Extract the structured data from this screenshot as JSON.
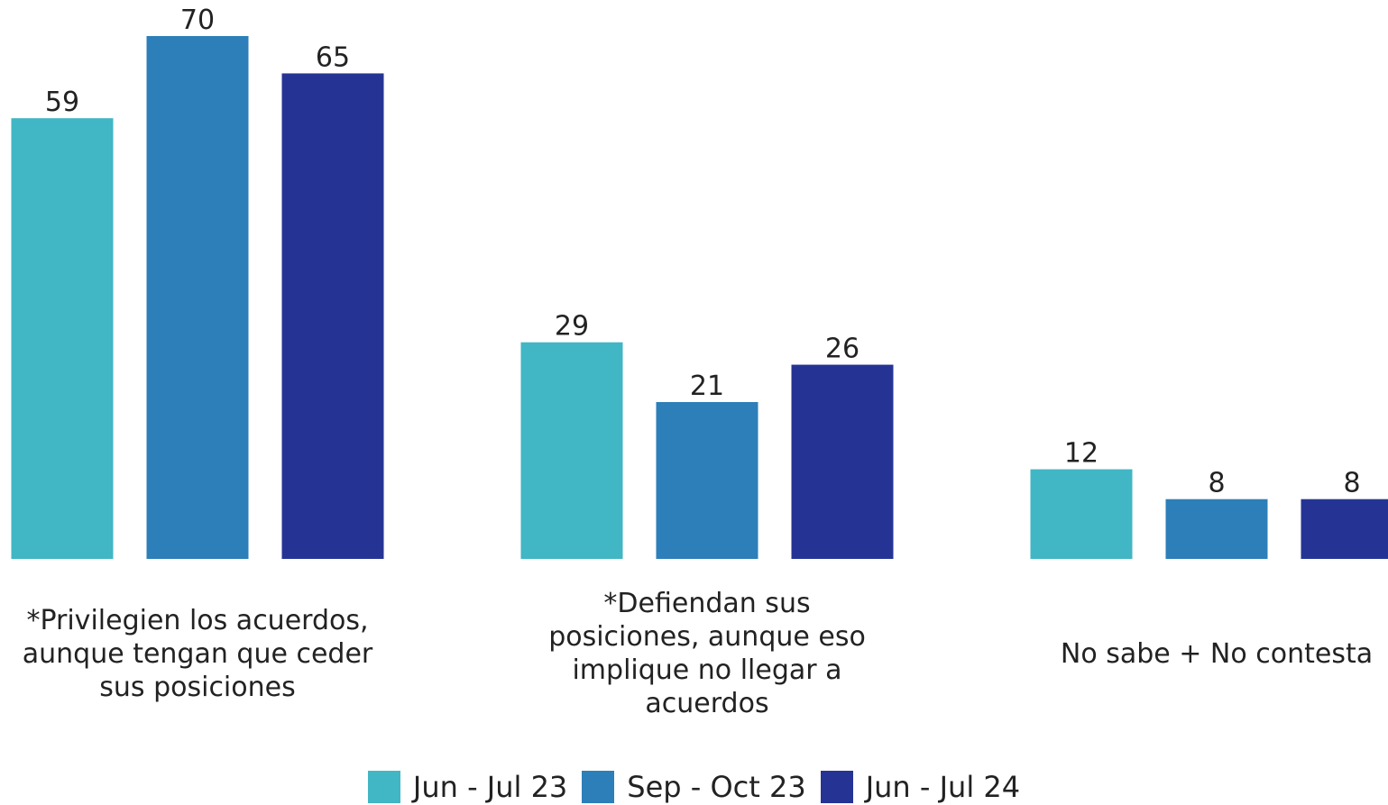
{
  "chart_data": {
    "type": "bar",
    "categories": [
      "*Privilegien los acuerdos, aunque tengan que ceder sus posiciones",
      "*Defiendan sus posiciones, aunque eso implique no llegar a acuerdos",
      "No sabe + No contesta"
    ],
    "series": [
      {
        "name": "Jun - Jul 23",
        "color": "#41b6c4",
        "values": [
          59,
          29,
          12
        ]
      },
      {
        "name": "Sep - Oct 23",
        "color": "#2c7fb8",
        "values": [
          70,
          21,
          8
        ]
      },
      {
        "name": "Jun - Jul 24",
        "color": "#253494",
        "values": [
          65,
          26,
          8
        ]
      }
    ],
    "legend": "bottom"
  }
}
